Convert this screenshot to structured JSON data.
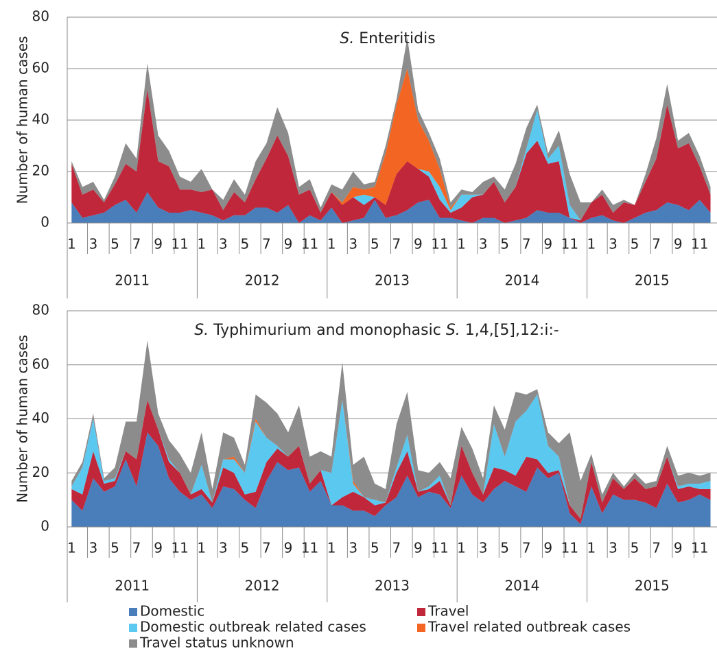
{
  "chart_data": [
    {
      "type": "stacked_area",
      "title": [
        {
          "text": "S.",
          "italic": true
        },
        {
          "text": " Enteritidis"
        }
      ],
      "y_label": "Number of human cases",
      "categories": [
        "1",
        null,
        "3",
        null,
        "5",
        null,
        "7",
        null,
        "9",
        null,
        "11",
        null,
        "1",
        null,
        "3",
        null,
        "5",
        null,
        "7",
        null,
        "9",
        null,
        "11",
        null,
        "1",
        null,
        "3",
        null,
        "5",
        null,
        "7",
        null,
        "9",
        null,
        "11",
        null,
        "1",
        null,
        "3",
        null,
        "5",
        null,
        "7",
        null,
        "9",
        null,
        "11",
        null,
        "1",
        null,
        "3",
        null,
        "5",
        null,
        "7",
        null,
        "9",
        null,
        "11",
        null
      ],
      "years": [
        "2011",
        "2012",
        "2013",
        "2014",
        "2015"
      ],
      "ylim": [
        0,
        80
      ],
      "yticks": [
        0,
        20,
        40,
        60,
        80
      ],
      "grid": true,
      "series": [
        {
          "name": "Domestic",
          "color": "#4a7ebb",
          "values": [
            8,
            2,
            3,
            4,
            7,
            9,
            4,
            12,
            6,
            4,
            4,
            5,
            4,
            3,
            1,
            3,
            3,
            6,
            6,
            4,
            7,
            0,
            3,
            1,
            6,
            0,
            1,
            2,
            9,
            2,
            3,
            5,
            8,
            9,
            2,
            2,
            1,
            0,
            2,
            2,
            0,
            1,
            2,
            5,
            4,
            4,
            2,
            0,
            2,
            3,
            1,
            0,
            2,
            4,
            5,
            8,
            7,
            5,
            9,
            4
          ]
        },
        {
          "name": "Travel",
          "color": "#c0273a",
          "values": [
            15,
            9,
            10,
            4,
            8,
            14,
            16,
            40,
            18,
            18,
            9,
            8,
            8,
            10,
            4,
            9,
            5,
            11,
            19,
            30,
            19,
            11,
            10,
            3,
            6,
            7,
            9,
            5,
            1,
            5,
            16,
            19,
            13,
            9,
            7,
            2,
            5,
            10,
            9,
            14,
            8,
            13,
            25,
            27,
            19,
            20,
            0,
            1,
            6,
            8,
            3,
            8,
            5,
            12,
            20,
            38,
            22,
            26,
            13,
            7
          ]
        },
        {
          "name": "Domestic outbreak related cases",
          "color": "#5bc8f0",
          "values": [
            0,
            0,
            0,
            0,
            0,
            0,
            0,
            0,
            0,
            0,
            0,
            0,
            0,
            0,
            0,
            0,
            0,
            0,
            0,
            0,
            0,
            0,
            0,
            0,
            0,
            0,
            0,
            4,
            0,
            0,
            0,
            0,
            0,
            2,
            5,
            1,
            5,
            1,
            0,
            0,
            0,
            0,
            2,
            12,
            2,
            6,
            5,
            0,
            0,
            0,
            0,
            0,
            0,
            0,
            0,
            0,
            0,
            0,
            0,
            0
          ]
        },
        {
          "name": "Travel related outbreak cases",
          "color": "#f26522",
          "values": [
            0,
            0,
            0,
            0,
            0,
            0,
            0,
            0,
            0,
            0,
            0,
            0,
            0,
            0,
            0,
            0,
            0,
            0,
            0,
            0,
            0,
            0,
            0,
            0,
            0,
            1,
            4,
            2,
            4,
            20,
            27,
            36,
            19,
            12,
            7,
            1,
            0,
            0,
            0,
            0,
            0,
            0,
            0,
            0,
            0,
            0,
            0,
            0,
            0,
            0,
            0,
            0,
            0,
            0,
            0,
            0,
            0,
            0,
            0,
            0
          ]
        },
        {
          "name": "Travel status unknown",
          "color": "#8c8c8c",
          "values": [
            1,
            3,
            3,
            1,
            3,
            8,
            5,
            10,
            10,
            6,
            5,
            3,
            9,
            0,
            4,
            5,
            3,
            7,
            6,
            11,
            9,
            3,
            4,
            2,
            3,
            5,
            6,
            2,
            2,
            3,
            2,
            12,
            4,
            3,
            4,
            2,
            2,
            1,
            5,
            2,
            5,
            9,
            8,
            2,
            2,
            6,
            12,
            7,
            0,
            2,
            3,
            1,
            0,
            3,
            8,
            8,
            3,
            4,
            4,
            3
          ]
        }
      ]
    },
    {
      "type": "stacked_area",
      "title": [
        {
          "text": "S.",
          "italic": true
        },
        {
          "text": " Typhimurium and monophasic "
        },
        {
          "text": "S.",
          "italic": true
        },
        {
          "text": " 1,4,[5],12:i:-"
        }
      ],
      "y_label": "Number of human cases",
      "categories": [
        "1",
        null,
        "3",
        null,
        "5",
        null,
        "7",
        null,
        "9",
        null,
        "11",
        null,
        "1",
        null,
        "3",
        null,
        "5",
        null,
        "7",
        null,
        "9",
        null,
        "11",
        null,
        "1",
        null,
        "3",
        null,
        "5",
        null,
        "7",
        null,
        "9",
        null,
        "11",
        null,
        "1",
        null,
        "3",
        null,
        "5",
        null,
        "7",
        null,
        "9",
        null,
        "11",
        null,
        "1",
        null,
        "3",
        null,
        "5",
        null,
        "7",
        null,
        "9",
        null,
        "11",
        null
      ],
      "years": [
        "2011",
        "2012",
        "2013",
        "2014",
        "2015"
      ],
      "ylim": [
        0,
        80
      ],
      "yticks": [
        0,
        20,
        40,
        60,
        80
      ],
      "grid": true,
      "series": [
        {
          "values": [
            10,
            6,
            18,
            13,
            15,
            25,
            15,
            35,
            30,
            18,
            13,
            10,
            12,
            7,
            15,
            14,
            10,
            7,
            17,
            24,
            21,
            22,
            13,
            17,
            8,
            8,
            6,
            6,
            4,
            8,
            11,
            19,
            11,
            13,
            12,
            7,
            19,
            12,
            9,
            14,
            17,
            15,
            13,
            22,
            18,
            20,
            5,
            1,
            15,
            5,
            12,
            10,
            10,
            9,
            7,
            16,
            9,
            10,
            12,
            10
          ]
        },
        {
          "values": [
            4,
            6,
            10,
            3,
            2,
            3,
            10,
            12,
            6,
            6,
            7,
            2,
            2,
            2,
            7,
            6,
            2,
            6,
            7,
            5,
            5,
            8,
            3,
            4,
            0,
            3,
            7,
            5,
            4,
            1,
            9,
            9,
            2,
            1,
            5,
            1,
            11,
            8,
            3,
            8,
            4,
            4,
            13,
            3,
            2,
            1,
            3,
            2,
            9,
            4,
            6,
            4,
            8,
            5,
            8,
            10,
            5,
            5,
            2,
            4
          ]
        },
        {
          "values": [
            1,
            10,
            12,
            1,
            1,
            0,
            0,
            0,
            0,
            1,
            0,
            0,
            9,
            0,
            3,
            5,
            8,
            26,
            9,
            1,
            0,
            0,
            0,
            0,
            12,
            36,
            3,
            0,
            2,
            0,
            2,
            6,
            0,
            1,
            2,
            0,
            0,
            0,
            0,
            16,
            5,
            20,
            17,
            24,
            10,
            5,
            0,
            0,
            0,
            0,
            0,
            0,
            0,
            0,
            0,
            0,
            1,
            1,
            2,
            3
          ]
        },
        {
          "values": [
            0,
            0,
            0,
            0,
            0,
            0,
            0,
            0,
            0,
            0,
            0,
            0,
            0,
            0,
            0,
            1,
            0,
            1,
            0,
            0,
            0,
            0,
            0,
            0,
            0,
            0,
            1,
            0,
            0,
            0,
            0,
            0,
            0,
            0,
            0,
            0,
            0,
            0,
            0,
            0,
            0,
            0,
            0,
            0,
            0,
            0,
            0,
            0,
            0,
            0,
            0,
            0,
            0,
            0,
            0,
            0,
            0,
            0,
            0,
            0
          ]
        },
        {
          "values": [
            2,
            2,
            2,
            1,
            4,
            11,
            14,
            22,
            6,
            7,
            7,
            8,
            12,
            5,
            10,
            7,
            3,
            9,
            13,
            12,
            9,
            15,
            10,
            7,
            6,
            14,
            6,
            15,
            6,
            5,
            16,
            16,
            8,
            5,
            5,
            10,
            7,
            9,
            6,
            7,
            10,
            11,
            6,
            2,
            5,
            5,
            27,
            14,
            3,
            3,
            2,
            1,
            2,
            2,
            2,
            4,
            4,
            4,
            3,
            3
          ]
        }
      ]
    }
  ]
}
